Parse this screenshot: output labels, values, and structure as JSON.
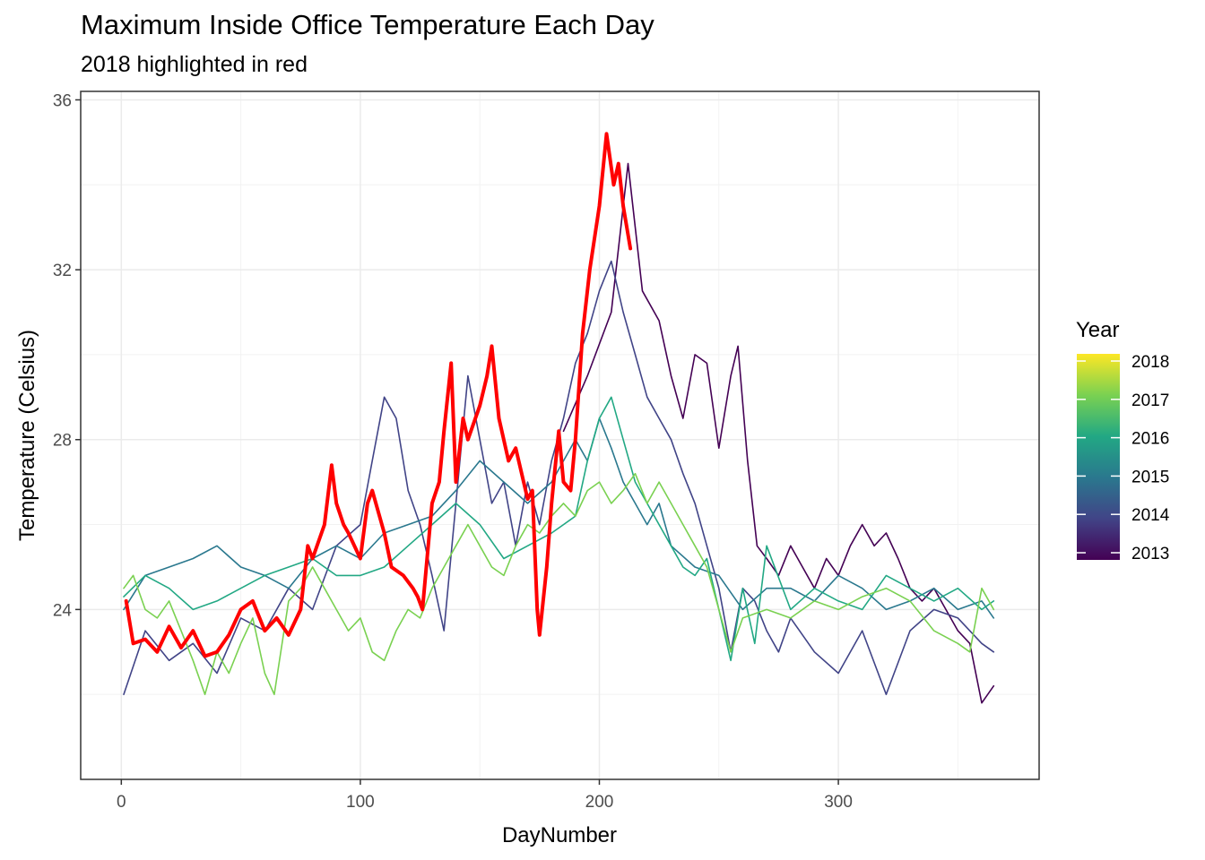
{
  "chart_data": {
    "type": "line",
    "title": "Maximum Inside Office Temperature Each Day",
    "subtitle": "2018 highlighted in red",
    "xlabel": "DayNumber",
    "ylabel": "Temperature (Celsius)",
    "xlim": [
      -17,
      384
    ],
    "ylim": [
      20.0,
      36.2
    ],
    "xticks": [
      0,
      100,
      200,
      300
    ],
    "yticks": [
      24,
      28,
      32,
      36
    ],
    "grid": true,
    "highlight_color": "#ff0000",
    "legend": {
      "title": "Year",
      "position": "right",
      "type": "colorbar",
      "labels": [
        "2018",
        "2017",
        "2016",
        "2015",
        "2014",
        "2013"
      ],
      "colors": [
        "#fde725",
        "#7ad151",
        "#22a884",
        "#2a788e",
        "#414487",
        "#440154"
      ]
    },
    "series": [
      {
        "name": "2013",
        "color": "#440154",
        "width": 1.6,
        "x": [
          185,
          195,
          205,
          212,
          218,
          225,
          230,
          235,
          240,
          245,
          250,
          255,
          258,
          262,
          266,
          270,
          275,
          280,
          285,
          290,
          295,
          300,
          305,
          310,
          315,
          320,
          325,
          330,
          335,
          340,
          345,
          350,
          355,
          360,
          365
        ],
        "y": [
          28.2,
          29.5,
          31.0,
          34.5,
          31.5,
          30.8,
          29.5,
          28.5,
          30.0,
          29.8,
          27.8,
          29.5,
          30.2,
          27.5,
          25.5,
          25.2,
          24.8,
          25.5,
          25.0,
          24.5,
          25.2,
          24.8,
          25.5,
          26.0,
          25.5,
          25.8,
          25.2,
          24.5,
          24.2,
          24.5,
          24.0,
          23.5,
          23.2,
          21.8,
          22.2
        ]
      },
      {
        "name": "2014",
        "color": "#414487",
        "width": 1.6,
        "x": [
          1,
          10,
          20,
          30,
          40,
          50,
          60,
          70,
          80,
          90,
          100,
          105,
          110,
          115,
          120,
          125,
          130,
          135,
          140,
          145,
          150,
          155,
          160,
          165,
          170,
          175,
          180,
          185,
          190,
          195,
          200,
          205,
          210,
          215,
          220,
          225,
          230,
          235,
          240,
          245,
          250,
          255,
          260,
          265,
          270,
          275,
          280,
          290,
          300,
          310,
          320,
          330,
          340,
          350,
          360,
          365
        ],
        "y": [
          22.0,
          23.5,
          22.8,
          23.2,
          22.5,
          23.8,
          23.5,
          24.5,
          24.0,
          25.5,
          26.0,
          27.5,
          29.0,
          28.5,
          26.8,
          26.0,
          24.8,
          23.5,
          26.5,
          29.5,
          28.0,
          26.5,
          27.0,
          25.5,
          27.0,
          26.0,
          27.5,
          28.5,
          29.8,
          30.5,
          31.5,
          32.2,
          31.0,
          30.0,
          29.0,
          28.5,
          28.0,
          27.2,
          26.5,
          25.5,
          24.5,
          23.0,
          24.5,
          24.2,
          23.5,
          23.0,
          23.8,
          23.0,
          22.5,
          23.5,
          22.0,
          23.5,
          24.0,
          23.8,
          23.2,
          23.0
        ]
      },
      {
        "name": "2015",
        "color": "#2a788e",
        "width": 1.6,
        "x": [
          1,
          10,
          20,
          30,
          40,
          50,
          60,
          70,
          80,
          90,
          100,
          110,
          120,
          130,
          140,
          150,
          160,
          170,
          180,
          190,
          195,
          200,
          205,
          210,
          215,
          220,
          225,
          230,
          240,
          250,
          260,
          270,
          280,
          290,
          300,
          310,
          320,
          330,
          340,
          350,
          360,
          365
        ],
        "y": [
          24.0,
          24.8,
          25.0,
          25.2,
          25.5,
          25.0,
          24.8,
          24.5,
          25.2,
          25.5,
          25.2,
          25.8,
          26.0,
          26.2,
          26.8,
          27.5,
          27.0,
          26.5,
          27.0,
          28.0,
          27.5,
          28.5,
          27.8,
          27.0,
          26.5,
          26.0,
          26.5,
          25.5,
          25.0,
          24.8,
          24.0,
          24.5,
          24.5,
          24.2,
          24.8,
          24.5,
          24.0,
          24.2,
          24.5,
          24.0,
          24.2,
          23.8
        ]
      },
      {
        "name": "2016",
        "color": "#22a884",
        "width": 1.6,
        "x": [
          1,
          10,
          20,
          30,
          40,
          50,
          60,
          70,
          80,
          90,
          100,
          110,
          120,
          130,
          140,
          150,
          160,
          170,
          180,
          185,
          190,
          195,
          200,
          205,
          210,
          215,
          220,
          225,
          230,
          235,
          240,
          245,
          250,
          255,
          260,
          265,
          270,
          280,
          290,
          300,
          310,
          320,
          330,
          340,
          350,
          360,
          365
        ],
        "y": [
          24.3,
          24.8,
          24.5,
          24.0,
          24.2,
          24.5,
          24.8,
          25.0,
          25.2,
          24.8,
          24.8,
          25.0,
          25.5,
          26.0,
          26.5,
          26.0,
          25.2,
          25.5,
          25.8,
          26.0,
          26.2,
          27.5,
          28.5,
          29.0,
          28.0,
          27.0,
          26.5,
          26.0,
          25.5,
          25.0,
          24.8,
          25.2,
          24.0,
          22.8,
          24.5,
          23.2,
          25.5,
          24.0,
          24.5,
          24.2,
          24.0,
          24.8,
          24.5,
          24.2,
          24.5,
          24.0,
          24.2
        ]
      },
      {
        "name": "2017",
        "color": "#7ad151",
        "width": 1.6,
        "x": [
          1,
          5,
          10,
          15,
          20,
          25,
          30,
          35,
          40,
          45,
          50,
          55,
          60,
          64,
          70,
          75,
          80,
          85,
          90,
          95,
          100,
          105,
          110,
          115,
          120,
          125,
          130,
          135,
          140,
          145,
          150,
          155,
          160,
          165,
          170,
          175,
          180,
          185,
          190,
          195,
          200,
          205,
          210,
          215,
          220,
          225,
          230,
          235,
          240,
          245,
          250,
          255,
          260,
          270,
          280,
          290,
          300,
          310,
          320,
          330,
          340,
          350,
          355,
          360,
          365
        ],
        "y": [
          24.5,
          24.8,
          24.0,
          23.8,
          24.2,
          23.5,
          22.8,
          22.0,
          23.0,
          22.5,
          23.2,
          23.8,
          22.5,
          22.0,
          24.2,
          24.5,
          25.0,
          24.5,
          24.0,
          23.5,
          23.8,
          23.0,
          22.8,
          23.5,
          24.0,
          23.8,
          24.5,
          25.0,
          25.5,
          26.0,
          25.5,
          25.0,
          24.8,
          25.5,
          26.0,
          25.8,
          26.2,
          26.5,
          26.2,
          26.8,
          27.0,
          26.5,
          26.8,
          27.2,
          26.5,
          27.0,
          26.5,
          26.0,
          25.5,
          25.0,
          24.0,
          23.0,
          23.8,
          24.0,
          23.8,
          24.2,
          24.0,
          24.3,
          24.5,
          24.2,
          23.5,
          23.2,
          23.0,
          24.5,
          24.0
        ]
      },
      {
        "name": "2018",
        "color": "#ff0000",
        "width": 4,
        "x": [
          2,
          5,
          10,
          15,
          20,
          25,
          30,
          35,
          40,
          45,
          50,
          55,
          60,
          65,
          70,
          75,
          78,
          80,
          85,
          88,
          90,
          93,
          95,
          100,
          103,
          105,
          110,
          113,
          118,
          122,
          124,
          126,
          130,
          133,
          135,
          138,
          140,
          143,
          145,
          150,
          153,
          155,
          158,
          162,
          165,
          170,
          172,
          174,
          175,
          178,
          180,
          183,
          185,
          188,
          190,
          193,
          196,
          200,
          203,
          206,
          208,
          210,
          213
        ],
        "y": [
          24.2,
          23.2,
          23.3,
          23.0,
          23.6,
          23.1,
          23.5,
          22.9,
          23.0,
          23.4,
          24.0,
          24.2,
          23.5,
          23.8,
          23.4,
          24.0,
          25.5,
          25.2,
          26.0,
          27.4,
          26.5,
          26.0,
          25.8,
          25.2,
          26.5,
          26.8,
          25.8,
          25.0,
          24.8,
          24.5,
          24.3,
          24.0,
          26.5,
          27.0,
          28.2,
          29.8,
          27.0,
          28.5,
          28.0,
          28.8,
          29.5,
          30.2,
          28.5,
          27.5,
          27.8,
          26.6,
          26.8,
          24.0,
          23.4,
          25.0,
          26.5,
          28.2,
          27.0,
          26.8,
          28.0,
          30.5,
          32.0,
          33.5,
          35.2,
          34.0,
          34.5,
          33.5,
          32.5
        ]
      }
    ]
  }
}
